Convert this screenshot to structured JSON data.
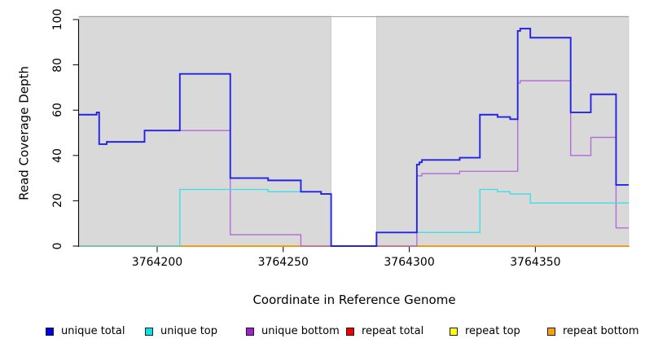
{
  "chart_data": {
    "type": "line",
    "subtype": "step",
    "title": "",
    "xlabel": "Coordinate in Reference Genome",
    "ylabel": "Read Coverage Depth",
    "xlim": [
      3764169,
      3764387
    ],
    "ylim": [
      0,
      100
    ],
    "x_ticks": [
      3764200,
      3764250,
      3764300,
      3764350
    ],
    "y_ticks": [
      0,
      20,
      40,
      60,
      80,
      100
    ],
    "grid": "off",
    "background_shading": {
      "color": "#d9d9d9",
      "regions": [
        [
          3764169,
          3764269
        ],
        [
          3764287,
          3764387
        ]
      ],
      "gap_region": [
        3764269,
        3764287
      ]
    },
    "series": [
      {
        "name": "repeat total",
        "color": "#e02020",
        "points": [
          [
            3764169,
            0
          ],
          [
            3764387,
            0
          ]
        ]
      },
      {
        "name": "repeat top",
        "color": "#f2f200",
        "points": [
          [
            3764169,
            0
          ],
          [
            3764387,
            0
          ]
        ]
      },
      {
        "name": "repeat bottom",
        "color": "#ff9d1a",
        "points": [
          [
            3764169,
            0
          ],
          [
            3764387,
            0
          ]
        ]
      },
      {
        "name": "unique bottom",
        "color": "#b168db",
        "points": [
          [
            3764169,
            58
          ],
          [
            3764176,
            59
          ],
          [
            3764177,
            45
          ],
          [
            3764180,
            46
          ],
          [
            3764195,
            51
          ],
          [
            3764229,
            5
          ],
          [
            3764257,
            0
          ],
          [
            3764303,
            31
          ],
          [
            3764305,
            32
          ],
          [
            3764320,
            33
          ],
          [
            3764343,
            72
          ],
          [
            3764344,
            73
          ],
          [
            3764364,
            40
          ],
          [
            3764372,
            48
          ],
          [
            3764382,
            8
          ],
          [
            3764387,
            8
          ]
        ]
      },
      {
        "name": "unique top",
        "color": "#3cdee8",
        "points": [
          [
            3764169,
            0
          ],
          [
            3764209,
            25
          ],
          [
            3764244,
            24
          ],
          [
            3764265,
            23
          ],
          [
            3764269,
            0
          ],
          [
            3764287,
            6
          ],
          [
            3764328,
            25
          ],
          [
            3764335,
            24
          ],
          [
            3764340,
            23
          ],
          [
            3764348,
            19
          ],
          [
            3764387,
            19
          ]
        ]
      },
      {
        "name": "unique total",
        "color": "#2323e8",
        "points": [
          [
            3764169,
            58
          ],
          [
            3764176,
            59
          ],
          [
            3764177,
            45
          ],
          [
            3764180,
            46
          ],
          [
            3764195,
            51
          ],
          [
            3764209,
            76
          ],
          [
            3764229,
            30
          ],
          [
            3764244,
            29
          ],
          [
            3764257,
            24
          ],
          [
            3764265,
            23
          ],
          [
            3764269,
            0
          ],
          [
            3764287,
            6
          ],
          [
            3764303,
            36
          ],
          [
            3764304,
            37
          ],
          [
            3764305,
            38
          ],
          [
            3764320,
            39
          ],
          [
            3764328,
            58
          ],
          [
            3764335,
            57
          ],
          [
            3764340,
            56
          ],
          [
            3764343,
            95
          ],
          [
            3764344,
            96
          ],
          [
            3764348,
            92
          ],
          [
            3764364,
            59
          ],
          [
            3764372,
            67
          ],
          [
            3764382,
            27
          ],
          [
            3764387,
            27
          ]
        ]
      }
    ],
    "legend_position": "bottom",
    "legend": [
      {
        "label": "unique total",
        "color": "#0000ee"
      },
      {
        "label": "unique top",
        "color": "#00e5e5"
      },
      {
        "label": "unique bottom",
        "color": "#a020d0"
      },
      {
        "label": "repeat total",
        "color": "#ee0000"
      },
      {
        "label": "repeat top",
        "color": "#ffff00"
      },
      {
        "label": "repeat bottom",
        "color": "#ffa000"
      }
    ]
  }
}
